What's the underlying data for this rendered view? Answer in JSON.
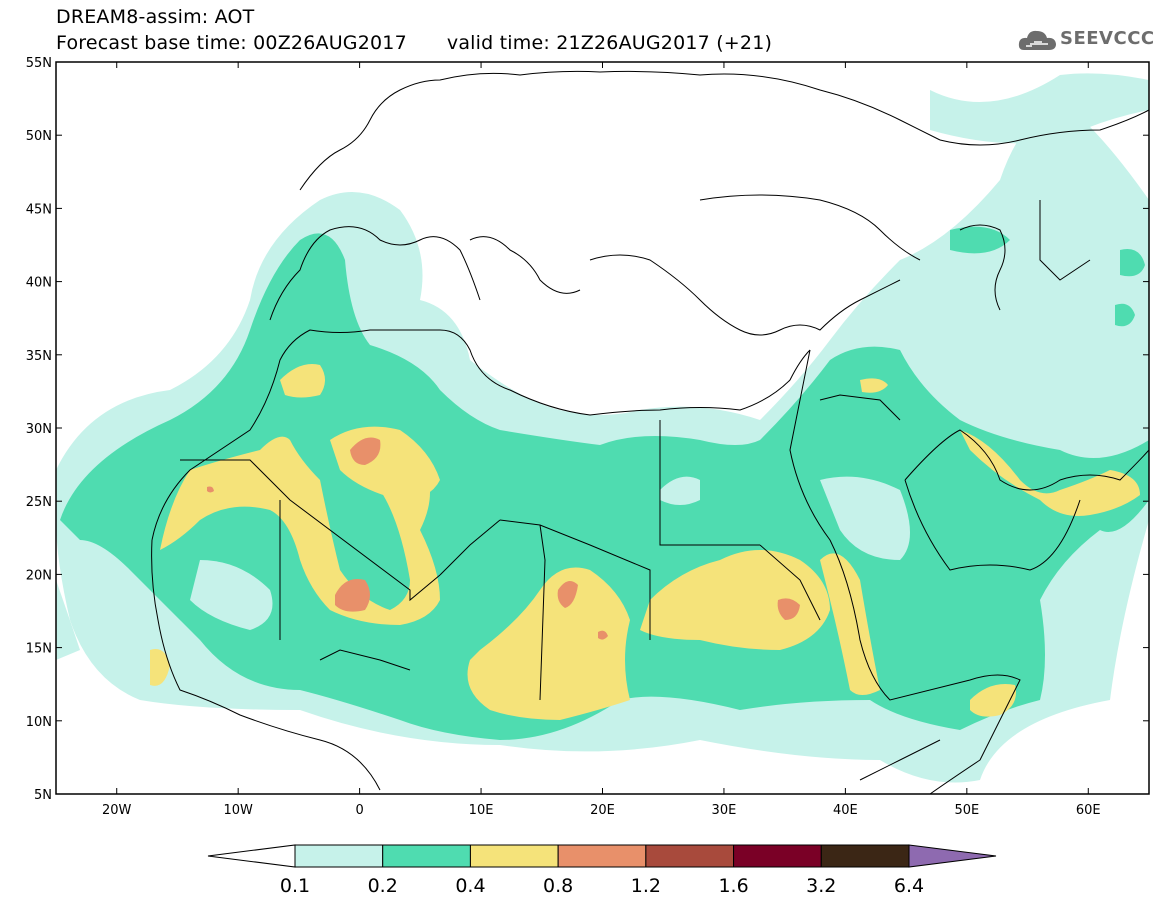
{
  "title": {
    "line1": "DREAM8-assim: AOT",
    "base_time": "Forecast base time: 00Z26AUG2017",
    "valid_time": "valid time: 21Z26AUG2017 (+21)"
  },
  "logo": {
    "text": "SEEVCCC",
    "icon": "cloud-logo-icon"
  },
  "map": {
    "projection": "lat-lon",
    "lon_range": [
      -25,
      65
    ],
    "lat_range": [
      5,
      55
    ],
    "lat_ticks": [
      "5N",
      "10N",
      "15N",
      "20N",
      "25N",
      "30N",
      "35N",
      "40N",
      "45N",
      "50N",
      "55N"
    ],
    "lon_ticks": [
      "20W",
      "10W",
      "0",
      "10E",
      "20E",
      "30E",
      "40E",
      "50E",
      "60E"
    ],
    "lat_tick_values": [
      5,
      10,
      15,
      20,
      25,
      30,
      35,
      40,
      45,
      50,
      55
    ],
    "lon_tick_values": [
      -20,
      -10,
      0,
      10,
      20,
      30,
      40,
      50,
      60
    ]
  },
  "legend": {
    "levels": [
      "0.1",
      "0.2",
      "0.4",
      "0.8",
      "1.2",
      "1.6",
      "3.2",
      "6.4"
    ],
    "colors": [
      "#ffffff",
      "#c6f2ea",
      "#4fdcb0",
      "#f5e37a",
      "#e8906a",
      "#a84a3c",
      "#7a0026",
      "#3b2615",
      "#8e6ab0"
    ]
  },
  "colors": {
    "aot_0_1_0_2": "#c6f2ea",
    "aot_0_2_0_4": "#4fdcb0",
    "aot_0_4_0_8": "#f5e37a",
    "aot_0_8_1_2": "#e8906a",
    "aot_1_2_1_6": "#a84a3c",
    "coastline": "#000000"
  }
}
